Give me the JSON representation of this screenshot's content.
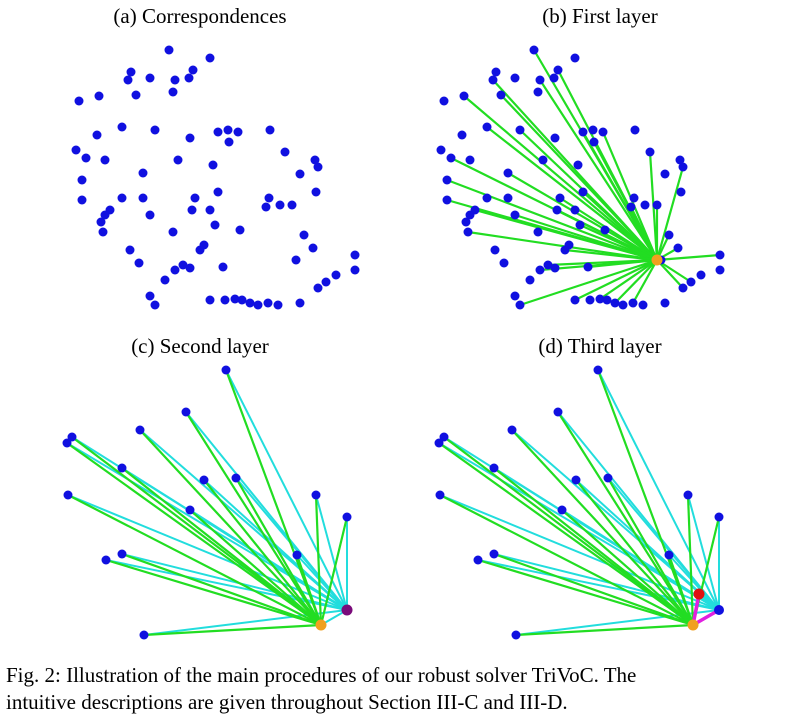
{
  "panels": {
    "a": {
      "title": "(a) Correspondences"
    },
    "b": {
      "title": "(b) First layer"
    },
    "c": {
      "title": "(c) Second layer"
    },
    "d": {
      "title": "(d) Third layer"
    }
  },
  "caption": {
    "line1": "Fig. 2: Illustration of the main procedures of our robust solver TriVoC. The",
    "line2": "intuitive descriptions are given throughout Section III-C and III-D."
  },
  "colors": {
    "point": "#1010e0",
    "first_layer_edge": "#22dd22",
    "second_layer_edge": "#22dddd",
    "third_layer_edge": "#e020e0",
    "anchor_orange": "#f0a020",
    "anchor_purple": "#7a0a7a",
    "anchor_red": "#e01010"
  }
}
